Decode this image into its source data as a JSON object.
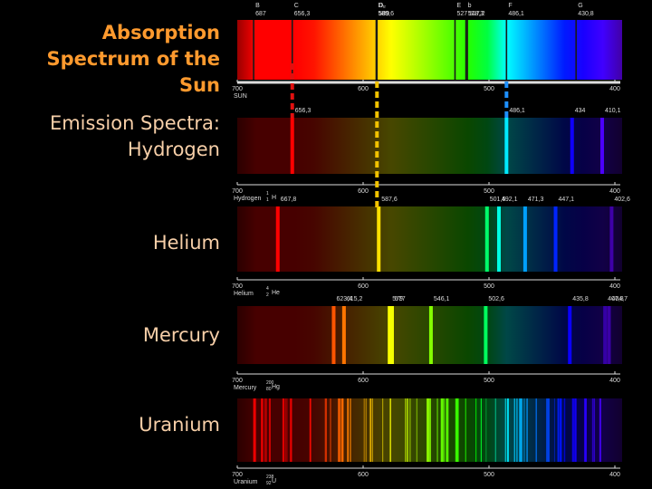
{
  "labels": {
    "absorption": [
      "Absorption",
      "Spectrum of the Sun"
    ],
    "emission": [
      "Emission Spectra:",
      "Hydrogen"
    ],
    "helium": "Helium",
    "mercury": "Mercury",
    "uranium": "Uranium"
  },
  "spectra": [
    {
      "scale_name": "SUN",
      "letters": [
        "B",
        "C",
        "D₁",
        "D₂",
        "E",
        "b",
        null,
        "F",
        "G"
      ],
      "lines": [
        687,
        {
          "value": 656.3,
          "label": "656,3"
        },
        {
          "value": 589.6,
          "label": "589,6"
        },
        589,
        527,
        {
          "value": 518.3,
          "label": "518,3"
        },
        {
          "value": 517.2,
          "label": "517,2"
        },
        {
          "value": 486.1,
          "label": "486,1"
        },
        {
          "value": 430.8,
          "label": "430,8"
        }
      ],
      "ticks": [
        700,
        600,
        500,
        400
      ]
    },
    {
      "scale_name": "Hydrogen",
      "symbol": "H",
      "mass": "1",
      "z": "1",
      "lines": [
        {
          "value": 656.3,
          "label": "656,3"
        },
        {
          "value": 486.1,
          "label": "486,1"
        },
        434,
        {
          "value": 410.1,
          "label": "410,1"
        }
      ],
      "ticks": [
        700,
        600,
        500,
        400
      ]
    },
    {
      "scale_name": "Helium",
      "symbol": "He",
      "mass": "4",
      "z": "2",
      "lines": [
        {
          "value": 667.8,
          "label": "667,8"
        },
        {
          "value": 587.6,
          "label": "587,6"
        },
        {
          "value": 501.6,
          "label": "501,6"
        },
        {
          "value": 492.1,
          "label": "492,1"
        },
        {
          "value": 471.3,
          "label": "471,3"
        },
        {
          "value": 447.1,
          "label": "447,1"
        },
        {
          "value": 402.6,
          "label": "402,6"
        }
      ],
      "ticks": [
        700,
        600,
        500,
        400
      ]
    },
    {
      "scale_name": "Mercury",
      "symbol": "Hg",
      "mass": "200",
      "z": "80",
      "lines": [
        {
          "value": 623.4,
          "label": "623,4"
        },
        {
          "value": 615.2,
          "label": "615,2"
        },
        579,
        577,
        {
          "value": 546.1,
          "label": "546,1"
        },
        {
          "value": 502.6,
          "label": "502,6"
        },
        {
          "value": 435.8,
          "label": "435,8"
        },
        {
          "value": 407.8,
          "label": "407,8"
        },
        {
          "value": 404.7,
          "label": "404,7"
        }
      ],
      "ticks": [
        700,
        600,
        500,
        400
      ]
    },
    {
      "scale_name": "Uranium",
      "symbol": "U",
      "mass": "238",
      "z": "92",
      "lines": [],
      "ticks": [
        700,
        600,
        500,
        400
      ]
    }
  ]
}
